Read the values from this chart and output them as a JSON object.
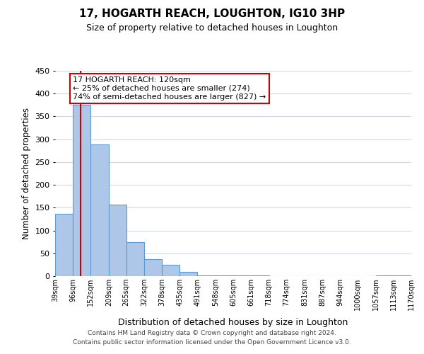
{
  "title": "17, HOGARTH REACH, LOUGHTON, IG10 3HP",
  "subtitle": "Size of property relative to detached houses in Loughton",
  "xlabel": "Distribution of detached houses by size in Loughton",
  "ylabel": "Number of detached properties",
  "bin_edges": [
    39,
    96,
    152,
    209,
    265,
    322,
    378,
    435,
    491,
    548,
    605,
    661,
    718,
    774,
    831,
    887,
    944,
    1000,
    1057,
    1113,
    1170
  ],
  "bin_labels": [
    "39sqm",
    "96sqm",
    "152sqm",
    "209sqm",
    "265sqm",
    "322sqm",
    "378sqm",
    "435sqm",
    "491sqm",
    "548sqm",
    "605sqm",
    "661sqm",
    "718sqm",
    "774sqm",
    "831sqm",
    "887sqm",
    "944sqm",
    "1000sqm",
    "1057sqm",
    "1113sqm",
    "1170sqm"
  ],
  "counts": [
    137,
    375,
    288,
    157,
    75,
    37,
    25,
    10,
    2,
    1,
    1,
    1,
    0,
    0,
    0,
    0,
    0,
    0,
    2,
    1,
    3
  ],
  "bar_color": "#aec6e8",
  "bar_edge_color": "#5b9bd5",
  "vline_x": 120,
  "vline_color": "#cc0000",
  "annotation_title": "17 HOGARTH REACH: 120sqm",
  "annotation_line1": "← 25% of detached houses are smaller (274)",
  "annotation_line2": "74% of semi-detached houses are larger (827) →",
  "annotation_box_color": "#ffffff",
  "annotation_box_edge": "#cc0000",
  "ylim": [
    0,
    450
  ],
  "yticks": [
    0,
    50,
    100,
    150,
    200,
    250,
    300,
    350,
    400,
    450
  ],
  "bg_color": "#ffffff",
  "grid_color": "#d0d8e8",
  "footer_line1": "Contains HM Land Registry data © Crown copyright and database right 2024.",
  "footer_line2": "Contains public sector information licensed under the Open Government Licence v3.0."
}
